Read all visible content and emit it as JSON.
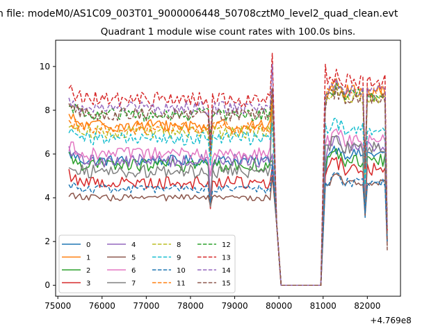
{
  "suptitle": "n file: modeM0/AS1C09_003T01_9000006448_50708cztM0_level2_quad_clean.evt",
  "chart_data": {
    "type": "line",
    "title": "Quadrant 1 module wise count rates with 100.0s bins.",
    "xlabel": "",
    "ylabel": "",
    "x_offset_label": "+4.769e8",
    "xlim": [
      74950,
      82750
    ],
    "ylim": [
      -0.5,
      11.2
    ],
    "x_ticks": [
      75000,
      76000,
      77000,
      78000,
      79000,
      80000,
      81000,
      82000
    ],
    "y_ticks": [
      0,
      2,
      4,
      6,
      8,
      10
    ],
    "x_tick_labels": [
      "75000",
      "76000",
      "77000",
      "78000",
      "79000",
      "80000",
      "81000",
      "82000"
    ],
    "y_tick_labels": [
      "0",
      "2",
      "4",
      "6",
      "8",
      "10"
    ],
    "grid": false,
    "legend_position": "lower-left",
    "legend_columns": 4,
    "segments": {
      "seg1": {
        "start": 75250,
        "end": 79850,
        "dip_at": 78450
      },
      "gap_start": 80050,
      "gap_end": 80950,
      "seg2": {
        "start": 81050,
        "end": 82450,
        "dip_at": 81950
      }
    },
    "series": [
      {
        "name": "0",
        "color": "#1f77b4",
        "dash": "solid",
        "level1": 5.7,
        "level2": 6.0,
        "peak1": 5.5,
        "first2": 5.0,
        "dip1": 3.6,
        "dip2": 3.1,
        "last": 2.0,
        "amp": 0.25
      },
      {
        "name": "1",
        "color": "#ff7f0e",
        "dash": "solid",
        "level1": 7.3,
        "level2": 8.9,
        "peak1": 9.0,
        "first2": 8.7,
        "dip1": 6.6,
        "dip2": 5.2,
        "last": 2.5,
        "amp": 0.3
      },
      {
        "name": "2",
        "color": "#2ca02c",
        "dash": "solid",
        "level1": 5.5,
        "level2": 5.7,
        "peak1": 5.7,
        "first2": 5.3,
        "dip1": 3.9,
        "dip2": 3.4,
        "last": 2.1,
        "amp": 0.3
      },
      {
        "name": "3",
        "color": "#d62728",
        "dash": "solid",
        "level1": 4.7,
        "level2": 5.3,
        "peak1": 5.4,
        "first2": 5.0,
        "dip1": 3.5,
        "dip2": 3.3,
        "last": 2.0,
        "amp": 0.3
      },
      {
        "name": "4",
        "color": "#9467bd",
        "dash": "solid",
        "level1": 5.7,
        "level2": 6.3,
        "peak1": 6.0,
        "first2": 5.6,
        "dip1": 3.9,
        "dip2": 3.5,
        "last": 2.1,
        "amp": 0.3
      },
      {
        "name": "5",
        "color": "#8c564b",
        "dash": "solid",
        "level1": 4.0,
        "level2": 4.7,
        "peak1": 5.0,
        "first2": 4.6,
        "dip1": 3.6,
        "dip2": 3.2,
        "last": 1.8,
        "amp": 0.15
      },
      {
        "name": "6",
        "color": "#e377c2",
        "dash": "solid",
        "level1": 6.0,
        "level2": 6.6,
        "peak1": 8.9,
        "first2": 6.4,
        "dip1": 5.0,
        "dip2": 4.0,
        "last": 2.4,
        "amp": 0.3
      },
      {
        "name": "7",
        "color": "#7f7f7f",
        "dash": "solid",
        "level1": 5.2,
        "level2": 6.3,
        "peak1": 8.5,
        "first2": 6.4,
        "dip1": 3.6,
        "dip2": 3.6,
        "last": 2.2,
        "amp": 0.3
      },
      {
        "name": "8",
        "color": "#bcbd22",
        "dash": "dashed",
        "level1": 7.0,
        "level2": 8.6,
        "peak1": 8.5,
        "first2": 8.3,
        "dip1": 5.6,
        "dip2": 4.9,
        "last": 2.6,
        "amp": 0.3
      },
      {
        "name": "9",
        "color": "#17becf",
        "dash": "dashed",
        "level1": 6.7,
        "level2": 7.1,
        "peak1": 7.4,
        "first2": 7.4,
        "dip1": 5.5,
        "dip2": 4.6,
        "last": 2.4,
        "amp": 0.3
      },
      {
        "name": "10",
        "color": "#1f77b4",
        "dash": "dashed",
        "level1": 4.4,
        "level2": 4.7,
        "peak1": 5.5,
        "first2": 4.7,
        "dip1": 3.8,
        "dip2": 3.3,
        "last": 2.0,
        "amp": 0.2
      },
      {
        "name": "11",
        "color": "#ff7f0e",
        "dash": "dashed",
        "level1": 7.2,
        "level2": 8.8,
        "peak1": 8.6,
        "first2": 8.5,
        "dip1": 6.4,
        "dip2": 5.3,
        "last": 2.6,
        "amp": 0.3
      },
      {
        "name": "12",
        "color": "#2ca02c",
        "dash": "dashed",
        "level1": 7.8,
        "level2": 8.7,
        "peak1": 9.0,
        "first2": 8.7,
        "dip1": 6.8,
        "dip2": 5.6,
        "last": 2.8,
        "amp": 0.3
      },
      {
        "name": "13",
        "color": "#d62728",
        "dash": "dashed",
        "level1": 8.5,
        "level2": 9.3,
        "peak1": 10.6,
        "first2": 10.1,
        "dip1": 6.3,
        "dip2": 5.3,
        "last": 2.5,
        "amp": 0.35
      },
      {
        "name": "14",
        "color": "#9467bd",
        "dash": "dashed",
        "level1": 8.1,
        "level2": 8.9,
        "peak1": 10.1,
        "first2": 8.7,
        "dip1": 6.1,
        "dip2": 5.5,
        "last": 2.6,
        "amp": 0.3
      },
      {
        "name": "15",
        "color": "#8c564b",
        "dash": "dashed",
        "level1": 7.8,
        "level2": 8.5,
        "peak1": 9.0,
        "first2": 8.0,
        "dip1": 6.0,
        "dip2": 5.5,
        "last": 1.6,
        "amp": 0.3
      }
    ]
  }
}
